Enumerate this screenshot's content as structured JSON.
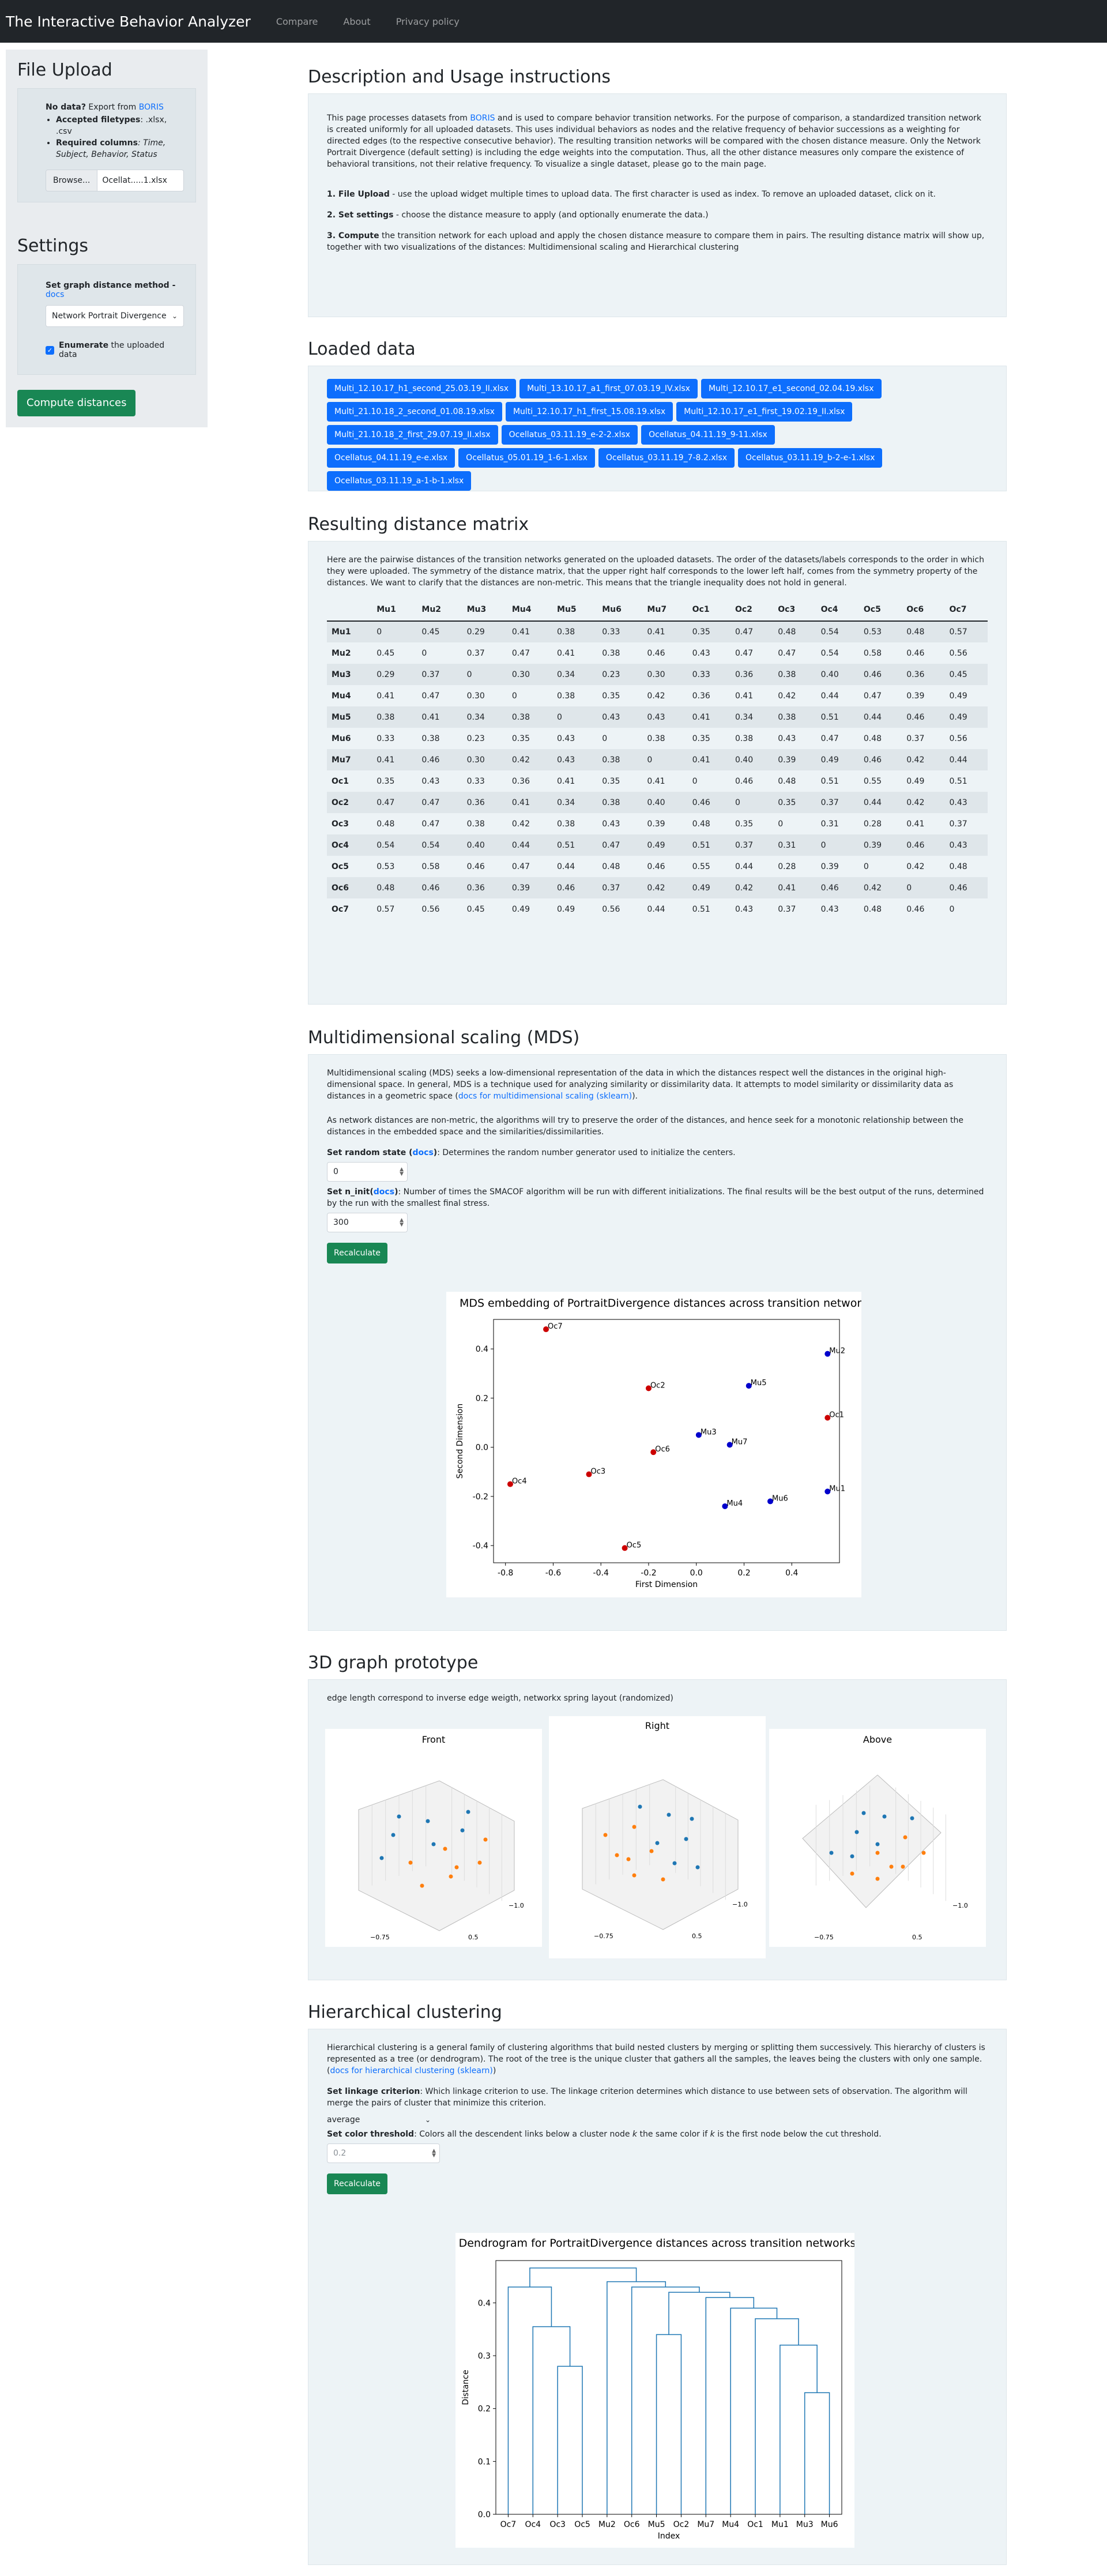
{
  "nav": {
    "brand": "The Interactive Behavior Analyzer",
    "links": [
      "Compare",
      "About",
      "Privacy policy"
    ]
  },
  "sidebar": {
    "upload_title": "File Upload",
    "no_data_label": "No data?",
    "no_data_text": " Export from ",
    "boris_link": "BORIS",
    "accepted_label": "Accepted filetypes",
    "accepted_value": ": .xlsx, .csv",
    "required_label": "Required columns",
    "required_value": ": Time, Subject, Behavior, Status",
    "browse_label": "Browse...",
    "file_name": "Ocellat.....1.xlsx",
    "settings_title": "Settings",
    "distance_label": "Set graph distance method - ",
    "docs_link": "docs",
    "distance_value": "Network Portrait Divergence",
    "enumerate_bold": "Enumerate",
    "enumerate_rest": " the uploaded data",
    "compute_button": "Compute distances"
  },
  "description": {
    "title": "Description and Usage instructions",
    "p1_a": "This page processes datasets from ",
    "p1_link": "BORIS",
    "p1_b": " and is used to compare behavior transition networks. For the purpose of comparison, a standardized transition network is created uniformly for all uploaded datasets. This uses individual behaviors as nodes and the relative frequency of behavior successions as a weighting for directed edges (to the respective consecutive behavior). The resulting transition networks will be compared with the chosen distance measure. Only the Network Portrait Divergence (default setting) is including the edge weights into the computation. Thus, all the other distance measures only compare the existence of behavioral transitions, not their relative frequency. To visualize a single dataset, please go to the main page.",
    "step1_bold": "1. File Upload",
    "step1_text": " - use the upload widget multiple times to upload data. The first character is used as index. To remove an uploaded dataset, click on it.",
    "step2_bold": "2. Set settings",
    "step2_text": " - choose the distance measure to apply (and optionally enumerate the data.)",
    "step3_bold": "3. Compute",
    "step3_text": " the transition network for each upload and apply the chosen distance measure to compare them in pairs. The resulting distance matrix will show up, together with two visualizations of the distances: Multidimensional scaling and Hierarchical clustering"
  },
  "loaded": {
    "title": "Loaded data",
    "files": [
      "Multi_12.10.17_h1_second_25.03.19_II.xlsx",
      "Multi_13.10.17_a1_first_07.03.19_IV.xlsx",
      "Multi_12.10.17_e1_second_02.04.19.xlsx",
      "Multi_21.10.18_2_second_01.08.19.xlsx",
      "Multi_12.10.17_h1_first_15.08.19.xlsx",
      "Multi_12.10.17_e1_first_19.02.19_II.xlsx",
      "Multi_21.10.18_2_first_29.07.19_II.xlsx",
      "Ocellatus_03.11.19_e-2-2.xlsx",
      "Ocellatus_04.11.19_9-11.xlsx",
      "Ocellatus_04.11.19_e-e.xlsx",
      "Ocellatus_05.01.19_1-6-1.xlsx",
      "Ocellatus_03.11.19_7-8.2.xlsx",
      "Ocellatus_03.11.19_b-2-e-1.xlsx",
      "Ocellatus_03.11.19_a-1-b-1.xlsx"
    ]
  },
  "matrix": {
    "title": "Resulting distance matrix",
    "intro": "Here are the pairwise distances of the transition networks generated on the uploaded datasets. The order of the datasets/labels corresponds to the order in which they were uploaded. The symmetry of the distance matrix, that the upper right half corresponds to the lower left half, comes from the symmetry property of the distances. We want to clarify that the distances are non-metric. This means that the triangle inequality does not hold in general.",
    "headers": [
      "",
      "Mu1",
      "Mu2",
      "Mu3",
      "Mu4",
      "Mu5",
      "Mu6",
      "Mu7",
      "Oc1",
      "Oc2",
      "Oc3",
      "Oc4",
      "Oc5",
      "Oc6",
      "Oc7"
    ],
    "rows": [
      [
        "Mu1",
        "0",
        "0.45",
        "0.29",
        "0.41",
        "0.38",
        "0.33",
        "0.41",
        "0.35",
        "0.47",
        "0.48",
        "0.54",
        "0.53",
        "0.48",
        "0.57"
      ],
      [
        "Mu2",
        "0.45",
        "0",
        "0.37",
        "0.47",
        "0.41",
        "0.38",
        "0.46",
        "0.43",
        "0.47",
        "0.47",
        "0.54",
        "0.58",
        "0.46",
        "0.56"
      ],
      [
        "Mu3",
        "0.29",
        "0.37",
        "0",
        "0.30",
        "0.34",
        "0.23",
        "0.30",
        "0.33",
        "0.36",
        "0.38",
        "0.40",
        "0.46",
        "0.36",
        "0.45"
      ],
      [
        "Mu4",
        "0.41",
        "0.47",
        "0.30",
        "0",
        "0.38",
        "0.35",
        "0.42",
        "0.36",
        "0.41",
        "0.42",
        "0.44",
        "0.47",
        "0.39",
        "0.49"
      ],
      [
        "Mu5",
        "0.38",
        "0.41",
        "0.34",
        "0.38",
        "0",
        "0.43",
        "0.43",
        "0.41",
        "0.34",
        "0.38",
        "0.51",
        "0.44",
        "0.46",
        "0.49"
      ],
      [
        "Mu6",
        "0.33",
        "0.38",
        "0.23",
        "0.35",
        "0.43",
        "0",
        "0.38",
        "0.35",
        "0.38",
        "0.43",
        "0.47",
        "0.48",
        "0.37",
        "0.56"
      ],
      [
        "Mu7",
        "0.41",
        "0.46",
        "0.30",
        "0.42",
        "0.43",
        "0.38",
        "0",
        "0.41",
        "0.40",
        "0.39",
        "0.49",
        "0.46",
        "0.42",
        "0.44"
      ],
      [
        "Oc1",
        "0.35",
        "0.43",
        "0.33",
        "0.36",
        "0.41",
        "0.35",
        "0.41",
        "0",
        "0.46",
        "0.48",
        "0.51",
        "0.55",
        "0.49",
        "0.51"
      ],
      [
        "Oc2",
        "0.47",
        "0.47",
        "0.36",
        "0.41",
        "0.34",
        "0.38",
        "0.40",
        "0.46",
        "0",
        "0.35",
        "0.37",
        "0.44",
        "0.42",
        "0.43"
      ],
      [
        "Oc3",
        "0.48",
        "0.47",
        "0.38",
        "0.42",
        "0.38",
        "0.43",
        "0.39",
        "0.48",
        "0.35",
        "0",
        "0.31",
        "0.28",
        "0.41",
        "0.37"
      ],
      [
        "Oc4",
        "0.54",
        "0.54",
        "0.40",
        "0.44",
        "0.51",
        "0.47",
        "0.49",
        "0.51",
        "0.37",
        "0.31",
        "0",
        "0.39",
        "0.46",
        "0.43"
      ],
      [
        "Oc5",
        "0.53",
        "0.58",
        "0.46",
        "0.47",
        "0.44",
        "0.48",
        "0.46",
        "0.55",
        "0.44",
        "0.28",
        "0.39",
        "0",
        "0.42",
        "0.48"
      ],
      [
        "Oc6",
        "0.48",
        "0.46",
        "0.36",
        "0.39",
        "0.46",
        "0.37",
        "0.42",
        "0.49",
        "0.42",
        "0.41",
        "0.46",
        "0.42",
        "0",
        "0.46"
      ],
      [
        "Oc7",
        "0.57",
        "0.56",
        "0.45",
        "0.49",
        "0.49",
        "0.56",
        "0.44",
        "0.51",
        "0.43",
        "0.37",
        "0.43",
        "0.48",
        "0.46",
        "0"
      ]
    ]
  },
  "mds": {
    "title": "Multidimensional scaling (MDS)",
    "p1_a": "Multidimensional scaling (MDS) seeks a low-dimensional representation of the data in which the distances respect well the distances in the original high-dimensional space. In general, MDS is a technique used for analyzing similarity or dissimilarity data. It attempts to model similarity or dissimilarity data as distances in a geometric space (",
    "p1_link": "docs for multidimensional scaling (sklearn)",
    "p1_b": ").",
    "p2": "As network distances are non-metric, the algorithms will try to preserve the order of the distances, and hence seek for a monotonic relationship between the distances in the embedded space and the similarities/dissimilarities.",
    "rs_bold": "Set random state (",
    "rs_link": "docs",
    "rs_bold2": ")",
    "rs_text": ": Determines the random number generator used to initialize the centers.",
    "rs_value": "0",
    "ni_bold": "Set n_init(",
    "ni_link": "docs",
    "ni_bold2": ")",
    "ni_text": ": Number of times the SMACOF algorithm will be run with different initializations. The final results will be the best output of the runs, determined by the run with the smallest final stress.",
    "ni_value": "300",
    "recalc": "Recalculate"
  },
  "graph3d": {
    "title": "3D graph prototype",
    "caption": "edge length correspond to inverse edge weigth, networkx spring layout (randomized)",
    "views": [
      "Front",
      "Right",
      "Above"
    ]
  },
  "hc": {
    "title": "Hierarchical clustering",
    "p1_a": "Hierarchical clustering is a general family of clustering algorithms that build nested clusters by merging or splitting them successively. This hierarchy of clusters is represented as a tree (or dendrogram). The root of the tree is the unique cluster that gathers all the samples, the leaves being the clusters with only one sample. (",
    "p1_link": "docs for hierarchical clustering (sklearn)",
    "p1_b": ")",
    "link_bold": "Set linkage criterion",
    "link_text": ": Which linkage criterion to use. The linkage criterion determines which distance to use between sets of observation. The algorithm will merge the pairs of cluster that minimize this criterion.",
    "link_value": "average",
    "thr_bold": "Set color threshold",
    "thr_text_a": ": Colors all the descendent links below a cluster node ",
    "thr_k": "k",
    "thr_text_b": " the same color if ",
    "thr_text_c": " is the first node below the cut threshold.",
    "thr_placeholder": "0.2",
    "recalc": "Recalculate"
  },
  "chart_data": [
    {
      "type": "scatter",
      "title": "MDS embedding of PortraitDivergence distances across transition networks",
      "xlabel": "First Dimension",
      "ylabel": "Second Dimension",
      "xlim": [
        -0.85,
        0.6
      ],
      "ylim": [
        -0.47,
        0.52
      ],
      "xticks": [
        "-0.8",
        "-0.6",
        "-0.4",
        "-0.2",
        "0.0",
        "0.2",
        "0.4"
      ],
      "yticks": [
        "-0.4",
        "-0.2",
        "0.0",
        "0.2",
        "0.4"
      ],
      "xtick_values": [
        -0.8,
        -0.6,
        -0.4,
        -0.2,
        0.0,
        0.2,
        0.4
      ],
      "ytick_values": [
        -0.4,
        -0.2,
        0.0,
        0.2,
        0.4
      ],
      "colors": {
        "Mu": "#0000cc",
        "Oc": "#cc0000"
      },
      "points": [
        {
          "label": "Oc7",
          "x": -0.63,
          "y": 0.48,
          "group": "Oc"
        },
        {
          "label": "Mu2",
          "x": 0.55,
          "y": 0.38,
          "group": "Mu"
        },
        {
          "label": "Oc2",
          "x": -0.2,
          "y": 0.24,
          "group": "Oc"
        },
        {
          "label": "Mu5",
          "x": 0.22,
          "y": 0.25,
          "group": "Mu"
        },
        {
          "label": "Oc1",
          "x": 0.55,
          "y": 0.12,
          "group": "Oc"
        },
        {
          "label": "Mu3",
          "x": 0.01,
          "y": 0.05,
          "group": "Mu"
        },
        {
          "label": "Mu7",
          "x": 0.14,
          "y": 0.01,
          "group": "Mu"
        },
        {
          "label": "Oc6",
          "x": -0.18,
          "y": -0.02,
          "group": "Oc"
        },
        {
          "label": "Oc3",
          "x": -0.45,
          "y": -0.11,
          "group": "Oc"
        },
        {
          "label": "Oc4",
          "x": -0.78,
          "y": -0.15,
          "group": "Oc"
        },
        {
          "label": "Mu1",
          "x": 0.55,
          "y": -0.18,
          "group": "Mu"
        },
        {
          "label": "Mu6",
          "x": 0.31,
          "y": -0.22,
          "group": "Mu"
        },
        {
          "label": "Mu4",
          "x": 0.12,
          "y": -0.24,
          "group": "Mu"
        },
        {
          "label": "Oc5",
          "x": -0.3,
          "y": -0.41,
          "group": "Oc"
        }
      ]
    },
    {
      "type": "dendrogram",
      "title": "Dendrogram for PortraitDivergence distances across transition networks",
      "xlabel": "Index",
      "ylabel": "Distance",
      "ylim": [
        0,
        0.48
      ],
      "yticks": [
        "0.0",
        "0.1",
        "0.2",
        "0.3",
        "0.4"
      ],
      "ytick_values": [
        0,
        0.1,
        0.2,
        0.3,
        0.4
      ],
      "leaves": [
        "Oc7",
        "Oc4",
        "Oc3",
        "Oc5",
        "Mu2",
        "Oc6",
        "Mu5",
        "Oc2",
        "Mu7",
        "Mu4",
        "Oc1",
        "Mu1",
        "Mu3",
        "Mu6"
      ],
      "color": "#1f77b4",
      "links": [
        {
          "a": 2,
          "b": 3,
          "h": 0.28
        },
        {
          "a": 1,
          "b": 2.5,
          "h": 0.355
        },
        {
          "a": 0,
          "b": 1.75,
          "h": 0.43
        },
        {
          "a": 6,
          "b": 7,
          "h": 0.34
        },
        {
          "a": 12,
          "b": 13,
          "h": 0.23
        },
        {
          "a": 11,
          "b": 12.5,
          "h": 0.32
        },
        {
          "a": 10,
          "b": 11.75,
          "h": 0.37
        },
        {
          "a": 9,
          "b": 10.875,
          "h": 0.39
        },
        {
          "a": 8,
          "b": 9.9375,
          "h": 0.41
        },
        {
          "a": 6.5,
          "b": 8.96875,
          "h": 0.42
        },
        {
          "a": 5,
          "b": 7.734375,
          "h": 0.43
        },
        {
          "a": 4,
          "b": 6.3671875,
          "h": 0.44
        },
        {
          "a": 0.875,
          "b": 5.18359375,
          "h": 0.466
        }
      ]
    }
  ]
}
